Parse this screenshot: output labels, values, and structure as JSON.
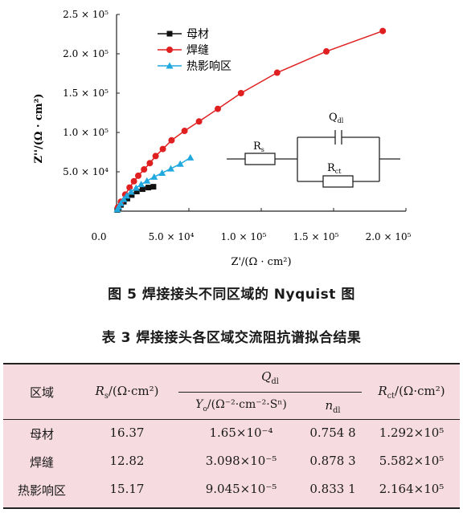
{
  "figure": {
    "caption": "图 5  焊接接头不同区域的 Nyquist 图",
    "chart_data": {
      "type": "scatter",
      "xlabel": "Z'/(Ω · cm²)",
      "ylabel": "Z''/(Ω · cm²)",
      "xlim": [
        0,
        200000
      ],
      "ylim": [
        0,
        250000
      ],
      "x_ticks": [
        "0.0",
        "5.0 × 10⁴",
        "1.0 × 10⁵",
        "1.5 × 10⁵",
        "2.0 × 10⁵"
      ],
      "y_ticks": [
        "5.0 × 10⁴",
        "1.0 × 10⁵",
        "1.5 × 10⁵",
        "2.0 × 10⁵",
        "2.5 × 10⁵"
      ],
      "legend_position": "top-left",
      "series": [
        {
          "name": "母材",
          "marker": "square",
          "color": "#111111",
          "x": [
            500,
            1500,
            3000,
            5000,
            7500,
            10500,
            14000,
            18000,
            22000,
            25500
          ],
          "y": [
            1500,
            4500,
            8000,
            12000,
            16000,
            20500,
            25000,
            28000,
            30000,
            31000
          ]
        },
        {
          "name": "焊缝",
          "marker": "circle",
          "color": "#e02020",
          "x": [
            1000,
            3000,
            6000,
            9000,
            12000,
            15000,
            19000,
            23000,
            27000,
            32000,
            38000,
            47000,
            57000,
            70000,
            86000,
            111000,
            145000,
            184000
          ],
          "y": [
            5000,
            12000,
            21000,
            30000,
            38000,
            45000,
            53000,
            61000,
            70000,
            79000,
            90000,
            102000,
            114000,
            130000,
            150000,
            176000,
            203000,
            229000
          ]
        },
        {
          "name": "热影响区",
          "marker": "triangle",
          "color": "#21a9df",
          "x": [
            500,
            1500,
            3000,
            5000,
            7000,
            10000,
            13500,
            17000,
            21000,
            26000,
            31500,
            37500,
            44000,
            51000
          ],
          "y": [
            2000,
            5500,
            10000,
            15000,
            19500,
            24500,
            29500,
            34000,
            38500,
            43500,
            48500,
            54000,
            60000,
            68000
          ]
        }
      ]
    },
    "circuit": {
      "rs": "R",
      "rs_sub": "s",
      "qdl": "Q",
      "qdl_sub": "dl",
      "rct": "R",
      "rct_sub": "ct"
    }
  },
  "table": {
    "caption": "表 3   焊接接头各区域交流阻抗谱拟合结果",
    "header": {
      "region": "区域",
      "rs": "/(Ω·cm²)",
      "qdl": "Q",
      "y0": "/(Ω⁻²·cm⁻²·Sⁿ)",
      "n": "n",
      "rct": "/(Ω·cm²)"
    },
    "rows": [
      {
        "region": "母材",
        "rs": "16.37",
        "y0": "1.65×10⁻⁴",
        "n": "0.754 8",
        "rct": "1.292×10⁵"
      },
      {
        "region": "焊缝",
        "rs": "12.82",
        "y0": "3.098×10⁻⁵",
        "n": "0.878 3",
        "rct": "5.582×10⁵"
      },
      {
        "region": "热影响区",
        "rs": "15.17",
        "y0": "9.045×10⁻⁵",
        "n": "0.833 1",
        "rct": "2.164×10⁵"
      }
    ]
  }
}
